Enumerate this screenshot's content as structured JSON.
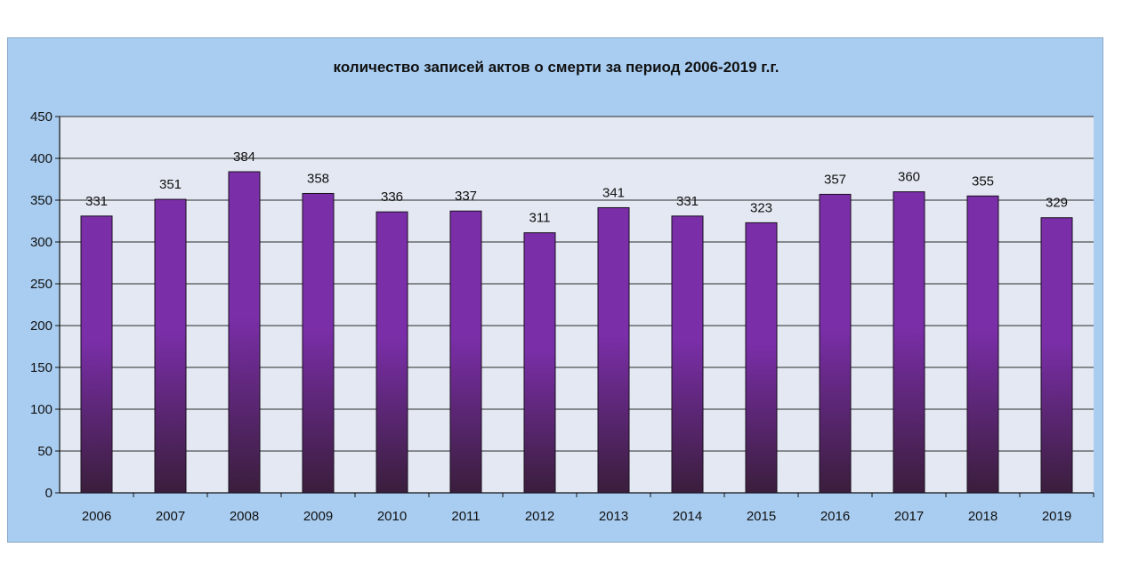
{
  "chart_data": {
    "type": "bar",
    "title": "количество записей актов о смерти за период 2006-2019 г.г.",
    "categories": [
      "2006",
      "2007",
      "2008",
      "2009",
      "2010",
      "2011",
      "2012",
      "2013",
      "2014",
      "2015",
      "2016",
      "2017",
      "2018",
      "2019"
    ],
    "values": [
      331,
      351,
      384,
      358,
      336,
      337,
      311,
      341,
      331,
      323,
      357,
      360,
      355,
      329
    ],
    "ylim": [
      0,
      450
    ],
    "yticks": [
      0,
      50,
      100,
      150,
      200,
      250,
      300,
      350,
      400,
      450
    ],
    "grid": true,
    "legend": "none",
    "colors": {
      "frame_background": "#a9cdf1",
      "plot_background": "#e3e8f2",
      "bar_top": "#7a2ea8",
      "bar_bottom": "#3a1e3c",
      "gridline": "#2a2a2a"
    }
  }
}
